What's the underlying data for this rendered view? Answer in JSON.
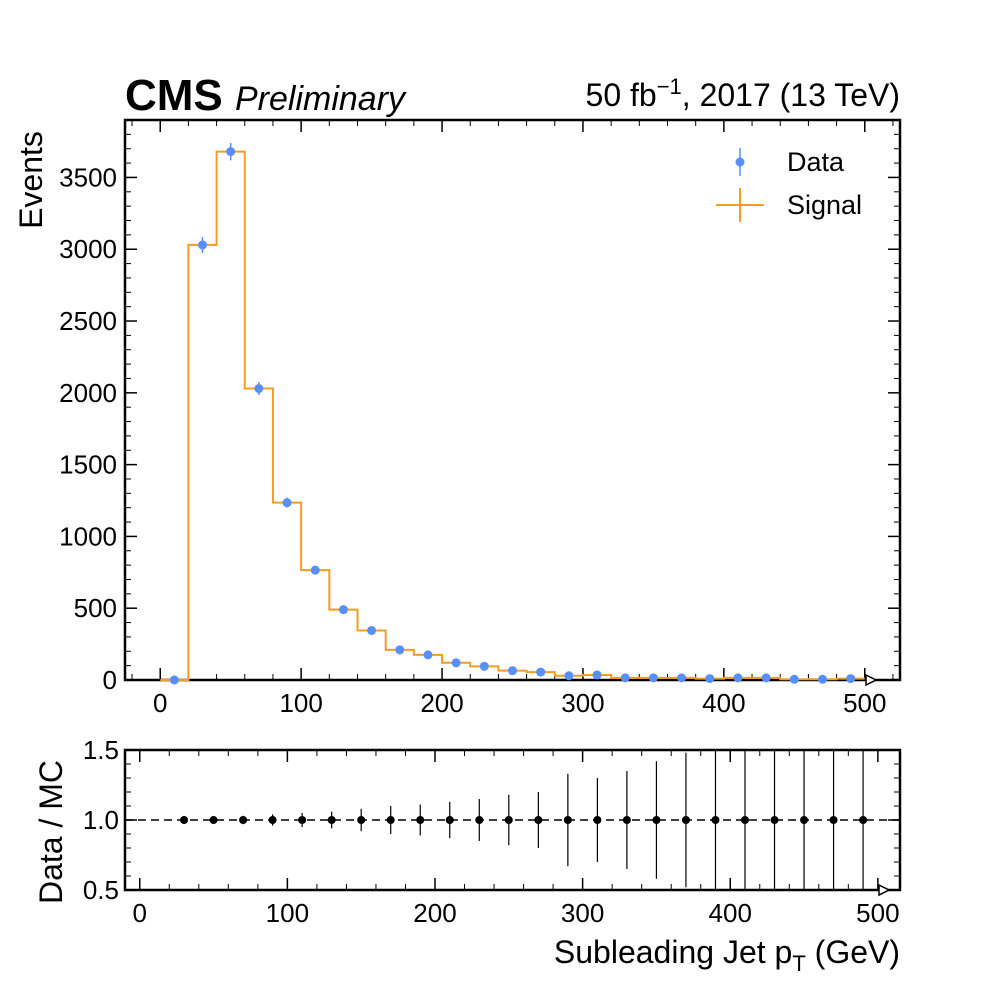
{
  "header": {
    "experiment": "CMS",
    "status": "Preliminary",
    "lumi": "50 fb",
    "lumi_exp": "−1",
    "lumi_suffix": ", 2017 (13 TeV)"
  },
  "colors": {
    "data": "#5790fc",
    "signal": "#f89c20",
    "ratio": "#000000"
  },
  "chart_data": [
    {
      "type": "histogram",
      "ylabel": "Events",
      "xlim": [
        -25,
        525
      ],
      "ylim": [
        0,
        3900
      ],
      "yticks": [
        0,
        500,
        1000,
        1500,
        2000,
        2500,
        3000,
        3500
      ],
      "xticks": [
        0,
        100,
        200,
        300,
        400,
        500
      ],
      "legend_position": "top-right",
      "bin_edges": [
        0,
        20,
        40,
        60,
        80,
        100,
        120,
        140,
        160,
        180,
        200,
        220,
        240,
        260,
        280,
        300,
        320,
        340,
        360,
        380,
        400,
        420,
        440,
        460,
        480,
        500
      ],
      "series": [
        {
          "name": "Data",
          "style": "points",
          "x": [
            10,
            30,
            50,
            70,
            90,
            110,
            130,
            150,
            170,
            190,
            210,
            230,
            250,
            270,
            290,
            310,
            330,
            350,
            370,
            390,
            410,
            430,
            450,
            470,
            490
          ],
          "values": [
            0,
            3030,
            3680,
            2030,
            1235,
            765,
            490,
            345,
            210,
            175,
            120,
            95,
            65,
            55,
            30,
            35,
            15,
            15,
            15,
            10,
            15,
            15,
            5,
            5,
            10
          ],
          "errors": [
            0,
            55,
            61,
            45,
            35,
            28,
            22,
            19,
            14,
            13,
            11,
            10,
            8,
            7,
            5,
            6,
            4,
            4,
            4,
            3,
            4,
            4,
            2,
            2,
            3
          ]
        },
        {
          "name": "Signal",
          "style": "step",
          "values": [
            0,
            3030,
            3680,
            2030,
            1235,
            765,
            490,
            345,
            210,
            175,
            120,
            95,
            65,
            55,
            30,
            35,
            15,
            15,
            15,
            10,
            15,
            15,
            5,
            5,
            10
          ]
        }
      ]
    },
    {
      "type": "scatter",
      "xlabel": "Subleading Jet p",
      "xlabel_sub": "T",
      "xlabel_suffix": " (GeV)",
      "ylabel": "Data / MC",
      "xlim": [
        -10,
        515
      ],
      "ylim": [
        0.5,
        1.5
      ],
      "yticks": [
        "0.5",
        "1.0",
        "1.5"
      ],
      "xticks": [
        0,
        100,
        200,
        300,
        400,
        500
      ],
      "reference_line": 1.0,
      "x": [
        30,
        50,
        70,
        90,
        110,
        130,
        150,
        170,
        190,
        210,
        230,
        250,
        270,
        290,
        310,
        330,
        350,
        370,
        390,
        410,
        430,
        450,
        470,
        490
      ],
      "values": [
        1.0,
        1.0,
        1.0,
        1.0,
        1.0,
        1.0,
        1.0,
        1.0,
        1.0,
        1.0,
        1.0,
        1.0,
        1.0,
        1.0,
        1.0,
        1.0,
        1.0,
        1.0,
        1.0,
        1.0,
        1.0,
        1.0,
        1.0,
        1.0
      ],
      "errors": [
        0.02,
        0.02,
        0.03,
        0.04,
        0.05,
        0.06,
        0.08,
        0.1,
        0.11,
        0.13,
        0.15,
        0.18,
        0.2,
        0.33,
        0.3,
        0.35,
        0.42,
        0.48,
        0.5,
        0.5,
        0.5,
        0.5,
        0.5,
        0.5
      ]
    }
  ]
}
